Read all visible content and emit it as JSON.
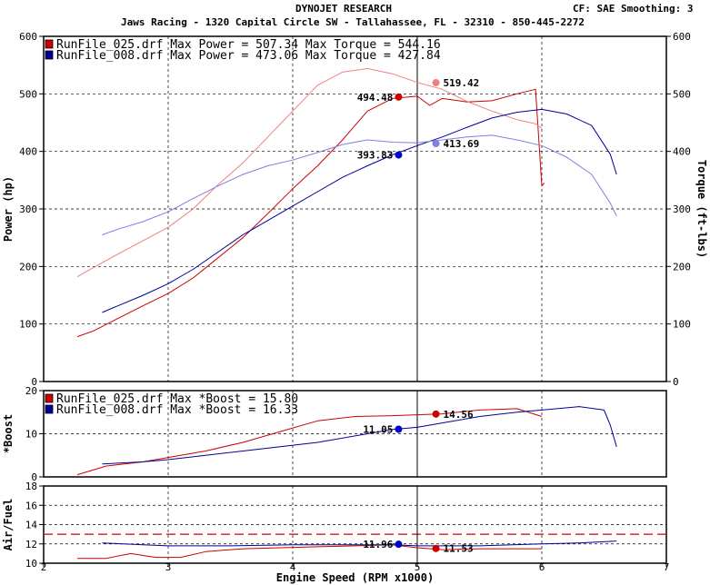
{
  "header": {
    "title": "DYNOJET RESEARCH",
    "subtitle": "Jaws Racing - 1320 Capital Circle SW - Tallahassee, FL - 32310 - 850-445-2272",
    "cf": "CF: SAE",
    "smoothing": "Smoothing: 3"
  },
  "colors": {
    "run025": "#cc0000",
    "run025_light": "#f08080",
    "run008": "#000099",
    "run008_light": "#8080e0",
    "grid": "#000000",
    "af_ref": "#cc0000"
  },
  "chart_data": [
    {
      "type": "line",
      "id": "power_torque",
      "ylabel": "Power (hp)",
      "y2label": "Torque (ft-lbs)",
      "xlim": [
        2,
        7
      ],
      "ylim": [
        0,
        600
      ],
      "y2lim": [
        0,
        600
      ],
      "y_ticks": [
        0,
        100,
        200,
        300,
        400,
        500,
        600
      ],
      "y2_ticks": [
        0,
        100,
        200,
        300,
        400,
        500,
        600
      ],
      "grid": true,
      "cursor_x": 5.0,
      "legend": [
        {
          "text": "RunFile_025.drf Max Power = 507.34    Max Torque = 544.16",
          "color": "#cc0000"
        },
        {
          "text": "RunFile_008.drf Max Power = 473.06    Max Torque = 427.84",
          "color": "#000099"
        }
      ],
      "series": [
        {
          "name": "RunFile_025.drf Power",
          "color": "#cc0000",
          "x": [
            2.27,
            2.4,
            2.6,
            2.8,
            3.0,
            3.2,
            3.4,
            3.6,
            3.8,
            4.0,
            4.2,
            4.4,
            4.6,
            4.8,
            5.0,
            5.1,
            5.2,
            5.4,
            5.6,
            5.8,
            5.95,
            6.0,
            6.02
          ],
          "y": [
            78,
            88,
            110,
            132,
            153,
            180,
            215,
            250,
            292,
            335,
            375,
            420,
            470,
            492,
            496,
            480,
            492,
            486,
            488,
            500,
            508,
            340,
            345
          ]
        },
        {
          "name": "RunFile_025.drf Torque",
          "color": "#f08080",
          "x": [
            2.27,
            2.4,
            2.6,
            2.8,
            3.0,
            3.2,
            3.4,
            3.6,
            3.8,
            4.0,
            4.2,
            4.4,
            4.6,
            4.8,
            5.0,
            5.2,
            5.4,
            5.6,
            5.8,
            5.95,
            6.0
          ],
          "y": [
            182,
            198,
            222,
            245,
            268,
            300,
            342,
            380,
            425,
            470,
            515,
            538,
            544,
            535,
            520,
            508,
            487,
            470,
            455,
            448,
            440
          ]
        },
        {
          "name": "RunFile_008.drf Power",
          "color": "#000099",
          "x": [
            2.47,
            2.6,
            2.8,
            3.0,
            3.2,
            3.4,
            3.6,
            3.8,
            4.0,
            4.2,
            4.4,
            4.6,
            4.8,
            5.0,
            5.2,
            5.4,
            5.6,
            5.8,
            6.0,
            6.2,
            6.4,
            6.55,
            6.6
          ],
          "y": [
            120,
            132,
            150,
            170,
            195,
            225,
            255,
            280,
            305,
            330,
            355,
            375,
            394,
            410,
            425,
            442,
            458,
            468,
            473,
            465,
            445,
            395,
            360
          ]
        },
        {
          "name": "RunFile_008.drf Torque",
          "color": "#8080e0",
          "x": [
            2.47,
            2.6,
            2.8,
            3.0,
            3.2,
            3.4,
            3.6,
            3.8,
            4.0,
            4.2,
            4.4,
            4.6,
            4.8,
            5.0,
            5.2,
            5.4,
            5.6,
            5.8,
            6.0,
            6.2,
            6.4,
            6.55,
            6.6
          ],
          "y": [
            255,
            265,
            278,
            295,
            318,
            340,
            360,
            375,
            385,
            398,
            412,
            420,
            416,
            415,
            420,
            425,
            428,
            420,
            410,
            390,
            360,
            310,
            288
          ]
        }
      ],
      "markers": [
        {
          "x": 4.85,
          "y": 494.48,
          "label": "494.48",
          "color": "#cc0000",
          "side": "left"
        },
        {
          "x": 5.15,
          "y": 519.42,
          "label": "519.42",
          "color": "#f08080",
          "side": "right"
        },
        {
          "x": 4.85,
          "y": 393.83,
          "label": "393.83",
          "color": "#0000cc",
          "side": "left"
        },
        {
          "x": 5.15,
          "y": 413.69,
          "label": "413.69",
          "color": "#8080e0",
          "side": "right"
        }
      ]
    },
    {
      "type": "line",
      "id": "boost",
      "ylabel": "*Boost",
      "xlim": [
        2,
        7
      ],
      "ylim": [
        0,
        20
      ],
      "y_ticks": [
        0,
        10,
        20
      ],
      "grid": true,
      "cursor_x": 5.0,
      "legend": [
        {
          "text": "RunFile_025.drf Max *Boost = 15.80",
          "color": "#cc0000"
        },
        {
          "text": "RunFile_008.drf Max *Boost = 16.33",
          "color": "#000099"
        }
      ],
      "series": [
        {
          "name": "RunFile_025.drf *Boost",
          "color": "#cc0000",
          "x": [
            2.27,
            2.5,
            2.8,
            3.0,
            3.3,
            3.6,
            3.9,
            4.2,
            4.5,
            4.8,
            5.0,
            5.2,
            5.5,
            5.8,
            6.0
          ],
          "y": [
            0.5,
            2.5,
            3.5,
            4.5,
            6.0,
            8.0,
            10.5,
            13.0,
            14.0,
            14.2,
            14.4,
            14.6,
            15.5,
            15.8,
            14.0
          ]
        },
        {
          "name": "RunFile_008.drf *Boost",
          "color": "#000099",
          "x": [
            2.47,
            2.8,
            3.0,
            3.3,
            3.6,
            3.9,
            4.2,
            4.5,
            4.8,
            5.0,
            5.2,
            5.5,
            5.8,
            6.0,
            6.3,
            6.5,
            6.55,
            6.6
          ],
          "y": [
            3.0,
            3.5,
            4.0,
            5.0,
            6.0,
            7.0,
            8.0,
            9.5,
            11.0,
            11.5,
            12.5,
            14.0,
            15.0,
            15.5,
            16.3,
            15.5,
            12.0,
            7.0
          ]
        }
      ],
      "markers": [
        {
          "x": 4.85,
          "y": 11.05,
          "label": "11.05",
          "color": "#0000cc",
          "side": "left"
        },
        {
          "x": 5.15,
          "y": 14.56,
          "label": "14.56",
          "color": "#cc0000",
          "side": "right"
        }
      ]
    },
    {
      "type": "line",
      "id": "air_fuel",
      "ylabel": "Air/Fuel",
      "xlabel": "Engine Speed (RPM x1000)",
      "xlim": [
        2,
        7
      ],
      "ylim": [
        10,
        18
      ],
      "y_ticks": [
        10,
        12,
        14,
        16,
        18
      ],
      "x_ticks": [
        2,
        3,
        4,
        5,
        6,
        7
      ],
      "reference_y": 13,
      "grid": true,
      "cursor_x": 5.0,
      "series": [
        {
          "name": "RunFile_025.drf Air/Fuel",
          "color": "#cc0000",
          "x": [
            2.27,
            2.5,
            2.7,
            2.9,
            3.1,
            3.3,
            3.6,
            3.9,
            4.2,
            4.5,
            4.8,
            5.0,
            5.2,
            5.5,
            5.8,
            6.0
          ],
          "y": [
            10.5,
            10.5,
            11.0,
            10.6,
            10.6,
            11.2,
            11.5,
            11.6,
            11.7,
            11.8,
            11.9,
            11.6,
            11.4,
            11.5,
            11.5,
            11.5
          ]
        },
        {
          "name": "RunFile_008.drf Air/Fuel",
          "color": "#000099",
          "x": [
            2.47,
            2.8,
            3.0,
            3.5,
            4.0,
            4.5,
            4.8,
            5.0,
            5.5,
            6.0,
            6.3,
            6.6
          ],
          "y": [
            12.1,
            11.9,
            11.8,
            11.8,
            11.9,
            11.9,
            11.9,
            11.8,
            11.8,
            12.0,
            12.1,
            12.3
          ]
        }
      ],
      "markers": [
        {
          "x": 4.85,
          "y": 11.96,
          "label": "11.96",
          "color": "#0000cc",
          "side": "left"
        },
        {
          "x": 5.15,
          "y": 11.53,
          "label": "11.53",
          "color": "#cc0000",
          "side": "right"
        }
      ]
    }
  ]
}
